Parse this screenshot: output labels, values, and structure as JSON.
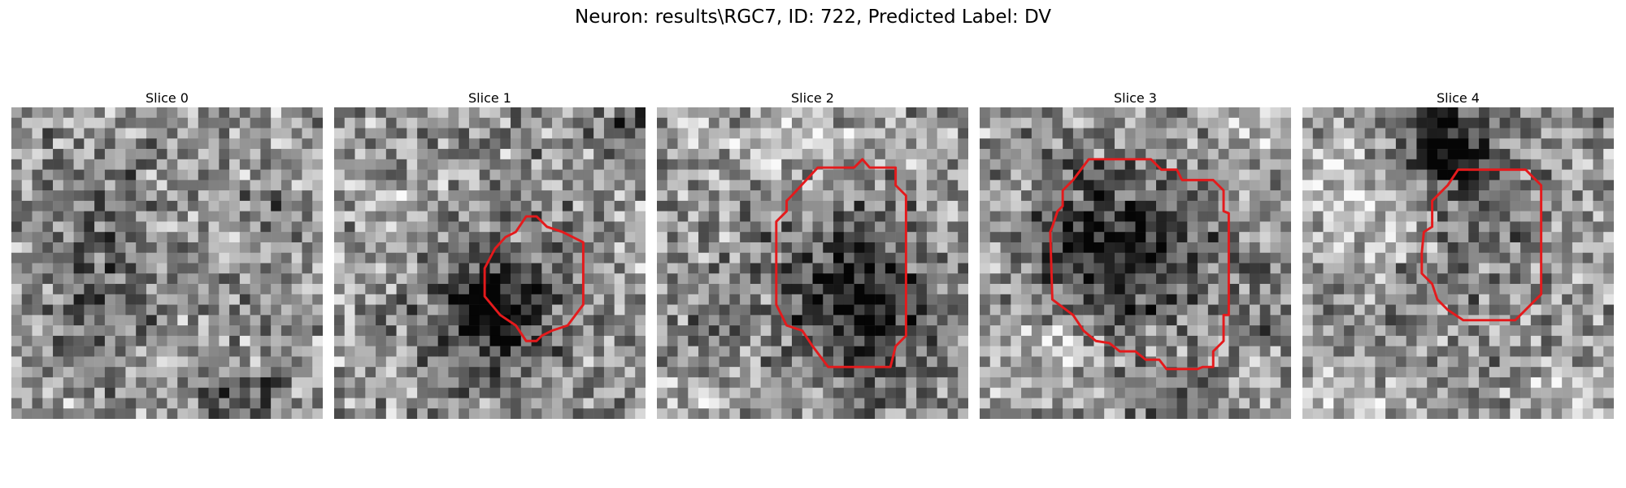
{
  "figure": {
    "title": "Neuron: results\\RGC7, ID: 722, Predicted Label: DV"
  },
  "panels": [
    {
      "label": "Slice 0",
      "has_outline": false
    },
    {
      "label": "Slice 1",
      "has_outline": true
    },
    {
      "label": "Slice 2",
      "has_outline": true
    },
    {
      "label": "Slice 3",
      "has_outline": true
    },
    {
      "label": "Slice 4",
      "has_outline": true
    }
  ],
  "colors": {
    "outline": "#e41a1c",
    "colormap": "grayscale"
  }
}
